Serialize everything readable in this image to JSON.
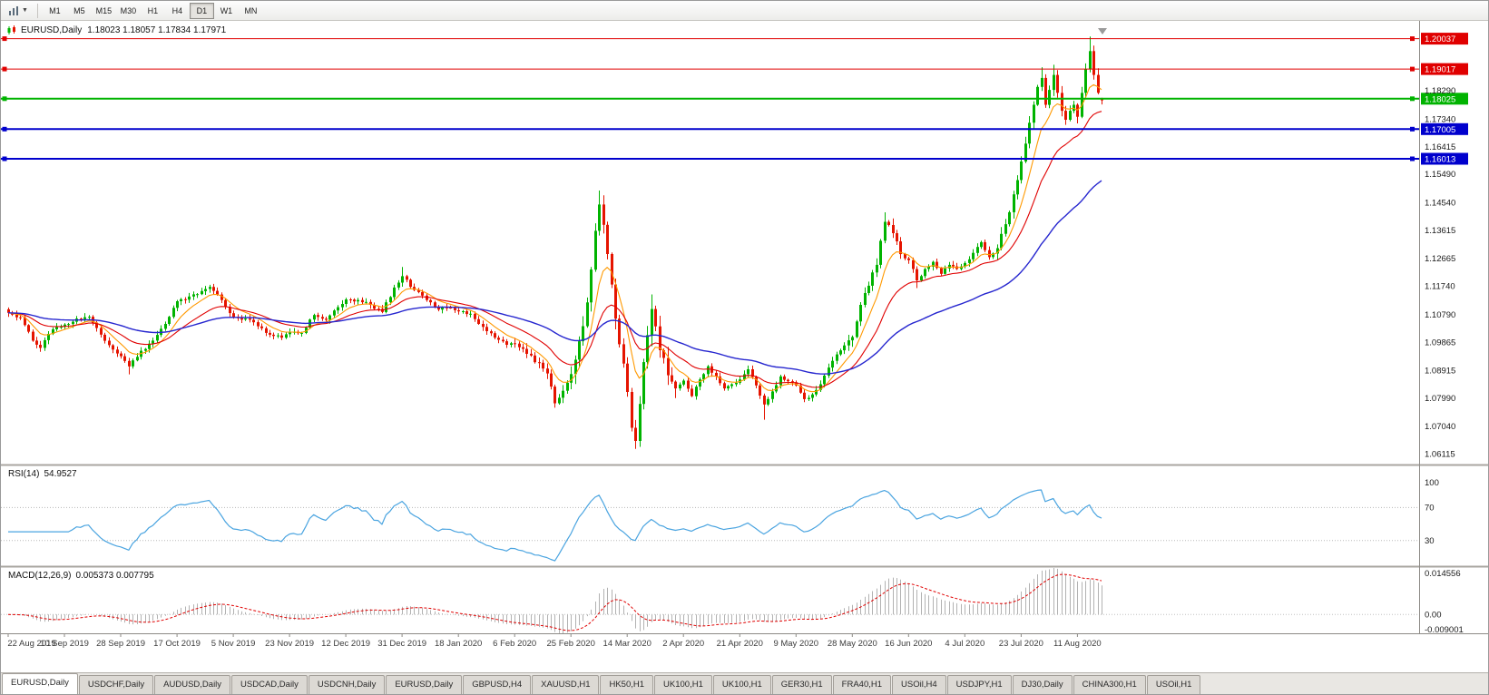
{
  "toolbar": {
    "timeframes": [
      "M1",
      "M5",
      "M15",
      "M30",
      "H1",
      "H4",
      "D1",
      "W1",
      "MN"
    ],
    "active_timeframe": "D1"
  },
  "chart": {
    "symbol_title": "EURUSD,Daily",
    "ohlc_text": "1.18023 1.18057 1.17834 1.17971"
  },
  "levels": [
    {
      "price": 1.20037,
      "label": "1.20037",
      "color": "#e00000",
      "width": 1,
      "type": "resistance"
    },
    {
      "price": 1.19017,
      "label": "1.19017",
      "color": "#e00000",
      "width": 1,
      "type": "resistance"
    },
    {
      "price": 1.18025,
      "label": "1.18025",
      "color": "#00b300",
      "width": 2,
      "type": "pivot"
    },
    {
      "price": 1.17005,
      "label": "1.17005",
      "color": "#0000cd",
      "width": 2,
      "type": "support"
    },
    {
      "price": 1.16013,
      "label": "1.16013",
      "color": "#0000cd",
      "width": 2,
      "type": "support"
    }
  ],
  "rsi_pane": {
    "name": "RSI(14)",
    "value": "54.9527",
    "ticks": [
      "100",
      "70",
      "30"
    ],
    "levels": [
      70,
      30
    ],
    "line_color": "#4aa4e0"
  },
  "macd_pane": {
    "name": "MACD(12,26,9)",
    "values": "0.005373 0.007795",
    "ticks": [
      "0.014556",
      "0.00",
      "-0.009001"
    ]
  },
  "tabs": {
    "active_index": 0,
    "items": [
      "EURUSD,Daily",
      "USDCHF,Daily",
      "AUDUSD,Daily",
      "USDCAD,Daily",
      "USDCNH,Daily",
      "EURUSD,Daily",
      "GBPUSD,H4",
      "XAUUSD,H1",
      "HK50,H1",
      "UK100,H1",
      "UK100,H1",
      "GER30,H1",
      "FRA40,H1",
      "USOil,H4",
      "USDJPY,H1",
      "DJ30,Daily",
      "CHINA300,H1",
      "USOil,H1"
    ]
  },
  "chart_data": {
    "type": "candlestick",
    "symbol": "EURUSD",
    "timeframe": "Daily",
    "title": "EURUSD,Daily 1.18023 1.18057 1.17834 1.17971",
    "x_labels": [
      "22 Aug 2019",
      "10 Sep 2019",
      "28 Sep 2019",
      "17 Oct 2019",
      "5 Nov 2019",
      "23 Nov 2019",
      "12 Dec 2019",
      "31 Dec 2019",
      "18 Jan 2020",
      "6 Feb 2020",
      "25 Feb 2020",
      "14 Mar 2020",
      "2 Apr 2020",
      "21 Apr 2020",
      "9 May 2020",
      "28 May 2020",
      "16 Jun 2020",
      "4 Jul 2020",
      "23 Jul 2020",
      "11 Aug 2020"
    ],
    "y_ticks": [
      "1.18290",
      "1.17340",
      "1.16415",
      "1.15490",
      "1.14540",
      "1.13615",
      "1.12665",
      "1.11740",
      "1.10790",
      "1.09865",
      "1.08915",
      "1.07990",
      "1.07040",
      "1.06115"
    ],
    "price_scale": {
      "min": 1.058,
      "max": 1.2045
    },
    "bars_total": 273,
    "bars_per_label": 14,
    "last_ohlc": {
      "open": 1.18023,
      "high": 1.18057,
      "low": 1.17834,
      "close": 1.17971
    },
    "horizontal_lines": [
      1.20037,
      1.19017,
      1.18025,
      1.17005,
      1.16013
    ],
    "close_anchors": [
      [
        0,
        1.1085
      ],
      [
        3,
        1.107
      ],
      [
        6,
        1.0992
      ],
      [
        8,
        1.0968
      ],
      [
        11,
        1.103
      ],
      [
        14,
        1.1046
      ],
      [
        17,
        1.1066
      ],
      [
        20,
        1.1072
      ],
      [
        23,
        1.1012
      ],
      [
        26,
        1.0962
      ],
      [
        28,
        1.094
      ],
      [
        30,
        1.0906
      ],
      [
        33,
        1.0958
      ],
      [
        36,
        1.0992
      ],
      [
        39,
        1.1048
      ],
      [
        42,
        1.1124
      ],
      [
        45,
        1.114
      ],
      [
        48,
        1.1158
      ],
      [
        50,
        1.1172
      ],
      [
        53,
        1.1128
      ],
      [
        56,
        1.107
      ],
      [
        59,
        1.1066
      ],
      [
        62,
        1.104
      ],
      [
        65,
        1.1012
      ],
      [
        68,
        1.1002
      ],
      [
        70,
        1.102
      ],
      [
        73,
        1.1018
      ],
      [
        76,
        1.1078
      ],
      [
        79,
        1.1062
      ],
      [
        82,
        1.1104
      ],
      [
        84,
        1.113
      ],
      [
        87,
        1.1128
      ],
      [
        90,
        1.1112
      ],
      [
        93,
        1.1088
      ],
      [
        96,
        1.117
      ],
      [
        98,
        1.1208
      ],
      [
        101,
        1.1162
      ],
      [
        104,
        1.1128
      ],
      [
        107,
        1.1096
      ],
      [
        110,
        1.1102
      ],
      [
        112,
        1.109
      ],
      [
        115,
        1.1082
      ],
      [
        118,
        1.1038
      ],
      [
        121,
        1.1002
      ],
      [
        124,
        1.0978
      ],
      [
        126,
        1.0982
      ],
      [
        129,
        1.0948
      ],
      [
        132,
        1.0918
      ],
      [
        134,
        1.0882
      ],
      [
        136,
        1.0782
      ],
      [
        138,
        1.0824
      ],
      [
        140,
        1.088
      ],
      [
        142,
        1.099
      ],
      [
        144,
        1.112
      ],
      [
        145,
        1.123
      ],
      [
        146,
        1.136
      ],
      [
        147,
        1.1448
      ],
      [
        148,
        1.138
      ],
      [
        150,
        1.118
      ],
      [
        152,
        1.098
      ],
      [
        154,
        1.082
      ],
      [
        155,
        1.07
      ],
      [
        156,
        1.0656
      ],
      [
        157,
        1.078
      ],
      [
        158,
        1.092
      ],
      [
        160,
        1.1098
      ],
      [
        161,
        1.104
      ],
      [
        162,
        1.096
      ],
      [
        164,
        1.0876
      ],
      [
        166,
        1.0832
      ],
      [
        168,
        1.0858
      ],
      [
        170,
        1.0806
      ],
      [
        172,
        1.0862
      ],
      [
        174,
        1.0906
      ],
      [
        176,
        1.0872
      ],
      [
        178,
        1.0832
      ],
      [
        180,
        1.0846
      ],
      [
        182,
        1.0862
      ],
      [
        184,
        1.0896
      ],
      [
        186,
        1.0842
      ],
      [
        188,
        1.0778
      ],
      [
        190,
        1.0822
      ],
      [
        192,
        1.0872
      ],
      [
        194,
        1.0856
      ],
      [
        196,
        1.0842
      ],
      [
        198,
        1.0796
      ],
      [
        200,
        1.0812
      ],
      [
        202,
        1.0846
      ],
      [
        204,
        1.0902
      ],
      [
        206,
        1.0946
      ],
      [
        208,
        1.0976
      ],
      [
        210,
        1.1004
      ],
      [
        212,
        1.1112
      ],
      [
        214,
        1.1176
      ],
      [
        216,
        1.1246
      ],
      [
        218,
        1.139
      ],
      [
        220,
        1.1352
      ],
      [
        222,
        1.1282
      ],
      [
        224,
        1.1262
      ],
      [
        226,
        1.1194
      ],
      [
        228,
        1.1232
      ],
      [
        230,
        1.1256
      ],
      [
        232,
        1.1216
      ],
      [
        234,
        1.1246
      ],
      [
        236,
        1.1232
      ],
      [
        238,
        1.1252
      ],
      [
        240,
        1.1286
      ],
      [
        242,
        1.1322
      ],
      [
        244,
        1.1272
      ],
      [
        246,
        1.1302
      ],
      [
        248,
        1.1382
      ],
      [
        250,
        1.1482
      ],
      [
        252,
        1.1592
      ],
      [
        253,
        1.1652
      ],
      [
        254,
        1.1722
      ],
      [
        255,
        1.1782
      ],
      [
        256,
        1.1842
      ],
      [
        257,
        1.1872
      ],
      [
        258,
        1.1782
      ],
      [
        259,
        1.1832
      ],
      [
        260,
        1.1882
      ],
      [
        261,
        1.1822
      ],
      [
        262,
        1.1762
      ],
      [
        263,
        1.1732
      ],
      [
        264,
        1.1762
      ],
      [
        265,
        1.1782
      ],
      [
        266,
        1.1742
      ],
      [
        267,
        1.1822
      ],
      [
        268,
        1.1902
      ],
      [
        269,
        1.1962
      ],
      [
        270,
        1.1882
      ],
      [
        271,
        1.1822
      ],
      [
        272,
        1.17971
      ]
    ],
    "key_extremes": {
      "highs": [
        [
          50,
          1.1179
        ],
        [
          98,
          1.1239
        ],
        [
          147,
          1.1495
        ],
        [
          160,
          1.1147
        ],
        [
          218,
          1.1422
        ],
        [
          257,
          1.1908
        ],
        [
          260,
          1.1916
        ],
        [
          269,
          1.2011
        ]
      ],
      "lows": [
        [
          8,
          1.0963
        ],
        [
          30,
          1.0879
        ],
        [
          136,
          1.0778
        ],
        [
          156,
          1.0636
        ],
        [
          188,
          1.0727
        ],
        [
          226,
          1.1168
        ]
      ]
    },
    "volatility_zones": {
      "default": 0.0012,
      "zones": [
        [
          126,
          139,
          0.0018
        ],
        [
          140,
          166,
          0.0038
        ],
        [
          208,
          222,
          0.0022
        ],
        [
          246,
          272,
          0.0022
        ]
      ]
    },
    "colors": {
      "up": "#00b300",
      "down": "#e51400",
      "ma_fast": "#ff9900",
      "ma_mid": "#e00000",
      "ma_slow": "#2626cf",
      "rsi": "#4aa4e0",
      "macd_hist": "#b2b2b2",
      "macd_signal": "#e00000"
    },
    "overlays": [
      {
        "name": "ema-fast",
        "period": 8,
        "color_key": "ma_fast"
      },
      {
        "name": "ema-mid",
        "period": 20,
        "color_key": "ma_mid"
      },
      {
        "name": "ema-slow",
        "period": 55,
        "color_key": "ma_slow"
      }
    ],
    "indicators": [
      {
        "name": "RSI",
        "period": 14,
        "last_value": 54.9527
      },
      {
        "name": "MACD",
        "fast": 12,
        "slow": 26,
        "signal": 9,
        "last_main": 0.005373,
        "last_signal": 0.007795
      }
    ]
  }
}
